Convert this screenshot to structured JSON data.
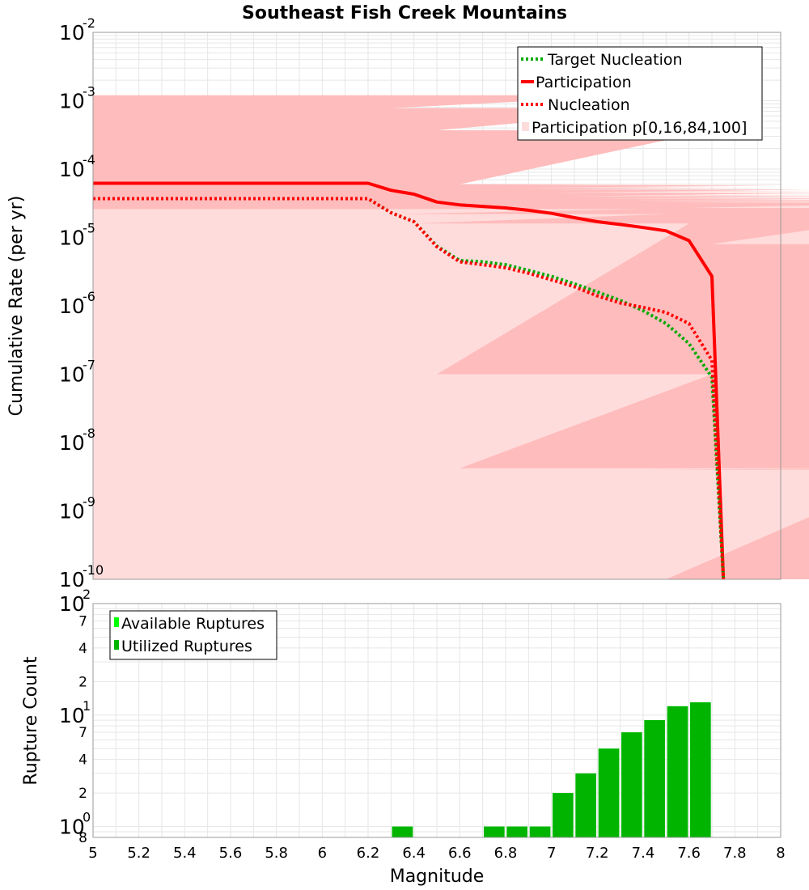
{
  "title": "Southeast Fish Creek Mountains",
  "colors": {
    "target": "#00aa00",
    "participation": "#ff0000",
    "nucleation": "#ff0000",
    "band_outer": "#ffdcdc",
    "band_inner": "#ffbcbc",
    "available": "#00ff00",
    "utilized": "#00b400",
    "grid": "#e6e6e6"
  },
  "chart_data": [
    {
      "type": "line",
      "scale": "log-y",
      "xlabel": "",
      "ylabel": "Cumulative Rate (per yr)",
      "xlim": [
        5,
        8
      ],
      "ylim": [
        1e-10,
        0.01
      ],
      "yticks": [
        {
          "base": "10",
          "exp": "-2",
          "v": 0.01
        },
        {
          "base": "10",
          "exp": "-3",
          "v": 0.001
        },
        {
          "base": "10",
          "exp": "-4",
          "v": 0.0001
        },
        {
          "base": "10",
          "exp": "-5",
          "v": 1e-05
        },
        {
          "base": "10",
          "exp": "-6",
          "v": 1e-06
        },
        {
          "base": "10",
          "exp": "-7",
          "v": 1e-07
        },
        {
          "base": "10",
          "exp": "-8",
          "v": 1e-08
        },
        {
          "base": "10",
          "exp": "-9",
          "v": 1e-09
        },
        {
          "base": "10",
          "exp": "-10",
          "v": 1e-10
        }
      ],
      "legend_position": "top-right",
      "grid": true,
      "series": [
        {
          "name": "Target Nucleation",
          "style": "dotted",
          "color": "#00aa00",
          "x": [
            5.0,
            6.2,
            6.3,
            6.4,
            6.5,
            6.6,
            6.7,
            6.8,
            6.9,
            7.0,
            7.1,
            7.2,
            7.3,
            7.4,
            7.5,
            7.6,
            7.7,
            7.75
          ],
          "y": [
            3.7e-05,
            3.7e-05,
            2.3e-05,
            1.7e-05,
            7.5e-06,
            4.6e-06,
            4.4e-06,
            4e-06,
            3.3e-06,
            2.7e-06,
            2.1e-06,
            1.6e-06,
            1.2e-06,
            8.5e-07,
            5.5e-07,
            2.8e-07,
            9e-08,
            1e-10
          ]
        },
        {
          "name": "Participation",
          "style": "solid",
          "color": "#ff0000",
          "x": [
            5.0,
            6.2,
            6.3,
            6.4,
            6.5,
            6.6,
            6.7,
            6.8,
            6.9,
            7.0,
            7.1,
            7.2,
            7.3,
            7.4,
            7.5,
            7.6,
            7.7,
            7.75
          ],
          "y": [
            6.2e-05,
            6.2e-05,
            4.9e-05,
            4.3e-05,
            3.3e-05,
            3e-05,
            2.85e-05,
            2.7e-05,
            2.5e-05,
            2.25e-05,
            1.95e-05,
            1.7e-05,
            1.55e-05,
            1.4e-05,
            1.25e-05,
            9e-06,
            2.7e-06,
            1e-10
          ]
        },
        {
          "name": "Nucleation",
          "style": "dotted",
          "color": "#ff0000",
          "x": [
            5.0,
            6.2,
            6.3,
            6.4,
            6.5,
            6.6,
            6.7,
            6.8,
            6.9,
            7.0,
            7.1,
            7.2,
            7.3,
            7.4,
            7.5,
            7.6,
            7.7,
            7.75
          ],
          "y": [
            3.7e-05,
            3.7e-05,
            2.3e-05,
            1.7e-05,
            7.3e-06,
            4.4e-06,
            4e-06,
            3.6e-06,
            3e-06,
            2.4e-06,
            1.9e-06,
            1.4e-06,
            1.1e-06,
            9.5e-07,
            8e-07,
            5.5e-07,
            1.6e-07,
            1e-10
          ]
        },
        {
          "name": "Participation p[0,16,84,100]",
          "style": "band",
          "x": [
            5.0,
            6.2,
            6.3,
            6.4,
            6.5,
            6.6,
            6.7,
            6.8,
            6.9,
            7.0,
            7.1,
            7.2,
            7.3,
            7.4,
            7.5,
            7.6,
            7.7
          ],
          "p0": [
            1e-10,
            1e-10,
            1e-10,
            1e-10,
            1e-10,
            1e-10,
            1e-10,
            1e-10,
            1e-10,
            1e-10,
            1e-10,
            1e-10,
            1e-10,
            1e-10,
            1e-10,
            1e-10,
            1e-10
          ],
          "p16": [
            2.6e-05,
            2.6e-05,
            2.2e-05,
            1.6e-05,
            1e-07,
            4.2e-09,
            4.2e-09,
            4.2e-09,
            4.2e-09,
            4.2e-09,
            4.2e-09,
            4.2e-09,
            4.2e-09,
            4e-09,
            1e-10,
            1e-10,
            1e-10
          ],
          "p84": [
            0.0012,
            0.0012,
            0.00078,
            0.00078,
            0.00037,
            6e-05,
            5.8e-05,
            5.3e-05,
            5e-05,
            4.5e-05,
            4e-05,
            3.7e-05,
            3.5e-05,
            3.3e-05,
            3.2e-05,
            2.7e-05,
            8e-06
          ],
          "p100": [
            0.0012,
            0.0012,
            0.00078,
            0.00078,
            0.00037,
            6e-05,
            6e-05,
            5.8e-05,
            5e-05,
            5e-05,
            4.8e-05,
            4.5e-05,
            4.2e-05,
            4e-05,
            3.8e-05,
            3.6e-05,
            1.8e-05
          ]
        }
      ]
    },
    {
      "type": "bar",
      "scale": "log-y",
      "xlabel": "Magnitude",
      "ylabel": "Rupture Count",
      "xlim": [
        5,
        8
      ],
      "xticks": [
        "5",
        "5.2",
        "5.4",
        "5.6",
        "5.8",
        "6",
        "6.2",
        "6.4",
        "6.6",
        "6.8",
        "7",
        "7.2",
        "7.4",
        "7.6",
        "7.8",
        "8"
      ],
      "ylim": [
        0.8,
        100
      ],
      "ymajor": [
        {
          "base": "10",
          "exp": "2",
          "v": 100
        },
        {
          "base": "10",
          "exp": "1",
          "v": 10
        },
        {
          "base": "10",
          "exp": "0",
          "v": 1
        }
      ],
      "yminor": [
        {
          "label": "7",
          "v": 70
        },
        {
          "label": "4",
          "v": 40
        },
        {
          "label": "2",
          "v": 20
        },
        {
          "label": "7",
          "v": 7
        },
        {
          "label": "4",
          "v": 4
        },
        {
          "label": "2",
          "v": 2
        },
        {
          "label": "8",
          "v": 0.8
        }
      ],
      "legend_position": "top-left",
      "grid": true,
      "bar_width": 0.09,
      "series": [
        {
          "name": "Available Ruptures",
          "color": "#00ff00",
          "x": [
            6.35,
            6.75,
            6.85,
            6.95,
            7.05,
            7.15,
            7.25,
            7.35,
            7.45,
            7.55,
            7.65
          ],
          "values": [
            1,
            1,
            1,
            1,
            2,
            3,
            5,
            7,
            9,
            12,
            13
          ]
        },
        {
          "name": "Utilized Ruptures",
          "color": "#00b400",
          "x": [
            6.35,
            6.75,
            6.85,
            6.95,
            7.05,
            7.15,
            7.25,
            7.35,
            7.45,
            7.55,
            7.65
          ],
          "values": [
            1,
            1,
            1,
            1,
            2,
            3,
            5,
            7,
            9,
            12,
            13
          ]
        }
      ]
    }
  ]
}
